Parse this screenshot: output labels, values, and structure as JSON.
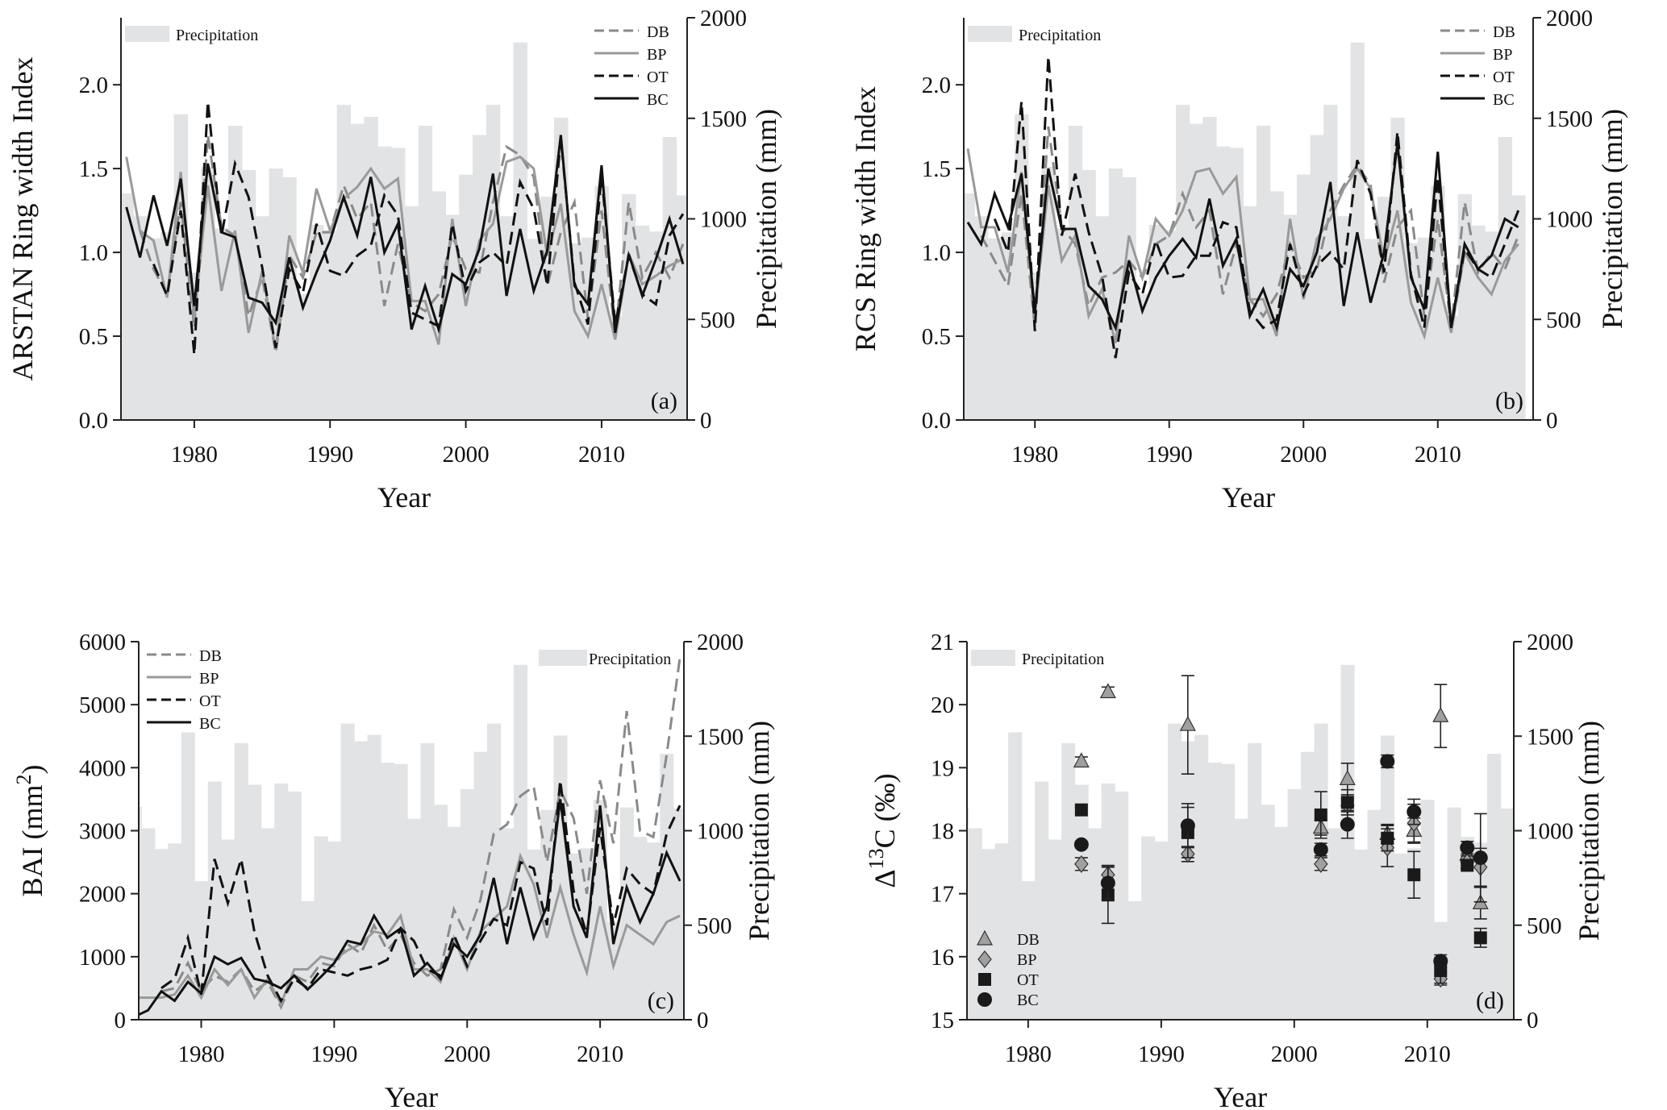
{
  "colors": {
    "precip": "#e2e3e5",
    "DB": "#8a8a8a",
    "BP": "#9a9a9a",
    "OT": "#111111",
    "BC": "#111111",
    "marker_gray": "#a0a0a0",
    "marker_dark": "#1a1a1a"
  },
  "chart_data": [
    {
      "id": "a",
      "type": "line",
      "panel_label": "(a)",
      "xlabel": "Year",
      "ylabel": "ARSTAN Ring width Index",
      "y2label": "Precipitation (mm)",
      "xticks": [
        1980,
        1990,
        2000,
        2010
      ],
      "yticks": [
        "0.0",
        "0.5",
        "1.0",
        "1.5",
        "2.0"
      ],
      "y2ticks": [
        "0",
        "500",
        "1000",
        "1500",
        "2000"
      ],
      "ylim": [
        0,
        2.4
      ],
      "y2lim": [
        0,
        2000
      ],
      "xlim": [
        1974.6,
        2016.3
      ],
      "legend_precip": "Precipitation",
      "legend_placement": "top-right",
      "series": [
        {
          "name": "DB",
          "style": "gray-dashed",
          "start": 1976,
          "values": [
            1.13,
            0.9,
            0.75,
            1.3,
            0.55,
            1.7,
            1.15,
            1.1,
            0.62,
            0.85,
            0.4,
            0.98,
            0.85,
            1.12,
            1.12,
            1.4,
            1.2,
            1.3,
            0.68,
            1.05,
            0.7,
            0.65,
            0.75,
            1.1,
            0.9,
            0.88,
            1.3,
            1.63,
            1.58,
            1.45,
            0.8,
            1.12,
            1.3,
            0.6,
            1.25,
            0.5,
            1.3,
            0.85,
            1.0,
            0.85,
            1.05
          ]
        },
        {
          "name": "BP",
          "style": "gray-solid",
          "start": 1975,
          "values": [
            1.57,
            1.13,
            1.07,
            0.73,
            1.48,
            0.6,
            1.4,
            0.77,
            1.13,
            0.52,
            0.89,
            0.42,
            1.1,
            0.88,
            1.38,
            1.13,
            1.32,
            1.39,
            1.5,
            1.38,
            1.44,
            0.71,
            0.71,
            0.45,
            1.2,
            0.68,
            1.07,
            1.17,
            1.54,
            1.57,
            1.5,
            0.98,
            1.29,
            0.65,
            0.5,
            0.81,
            0.48,
            0.99,
            0.81,
            0.86,
            0.92,
            0.96
          ]
        },
        {
          "name": "OT",
          "style": "black-dashed",
          "start": 1977,
          "values": [
            0.93,
            0.74,
            1.25,
            0.39,
            1.9,
            1.1,
            1.53,
            1.33,
            0.91,
            0.43,
            0.9,
            0.76,
            1.17,
            0.89,
            0.86,
            0.98,
            1.04,
            1.34,
            1.22,
            0.64,
            0.6,
            0.56,
            1.17,
            0.77,
            0.94,
            1.0,
            0.92,
            1.42,
            1.26,
            0.8,
            1.68,
            0.82,
            0.57,
            1.46,
            0.57,
            0.98,
            0.75,
            0.69,
            1.1,
            1.23
          ]
        },
        {
          "name": "BC",
          "style": "black-solid",
          "start": 1975,
          "values": [
            1.27,
            0.97,
            1.34,
            1.04,
            1.44,
            0.68,
            1.53,
            1.12,
            1.09,
            0.73,
            0.7,
            0.58,
            0.97,
            0.67,
            0.88,
            1.07,
            1.33,
            1.1,
            1.45,
            1.0,
            1.17,
            0.54,
            0.8,
            0.54,
            0.87,
            0.81,
            1.02,
            1.47,
            0.74,
            1.14,
            0.77,
            1.01,
            1.7,
            0.8,
            0.69,
            1.52,
            0.52,
            0.99,
            0.74,
            0.96,
            1.2,
            0.93
          ]
        }
      ]
    },
    {
      "id": "b",
      "type": "line",
      "panel_label": "(b)",
      "xlabel": "Year",
      "ylabel": "RCS Ring width Index",
      "y2label": "Precipitation (mm)",
      "xticks": [
        1980,
        1990,
        2000,
        2010
      ],
      "yticks": [
        "0.0",
        "0.5",
        "1.0",
        "1.5",
        "2.0"
      ],
      "y2ticks": [
        "0",
        "500",
        "1000",
        "1500",
        "2000"
      ],
      "ylim": [
        0,
        2.4
      ],
      "y2lim": [
        0,
        2000
      ],
      "xlim": [
        1974.7,
        2017.1
      ],
      "legend_precip": "Precipitation",
      "legend_placement": "top-right",
      "series": [
        {
          "name": "DB",
          "style": "gray-dashed",
          "start": 1976,
          "values": [
            1.1,
            0.95,
            0.8,
            1.35,
            0.55,
            1.75,
            1.15,
            1.05,
            0.68,
            0.85,
            0.88,
            0.95,
            0.85,
            1.05,
            1.1,
            1.35,
            1.15,
            1.25,
            0.75,
            1.05,
            0.72,
            0.62,
            0.75,
            1.05,
            0.85,
            0.9,
            1.25,
            1.4,
            1.52,
            1.4,
            0.82,
            1.15,
            1.25,
            0.62,
            1.2,
            0.55,
            1.3,
            0.88,
            1.0,
            0.9,
            1.1
          ]
        },
        {
          "name": "BP",
          "style": "gray-solid",
          "start": 1975,
          "values": [
            1.62,
            1.15,
            1.15,
            0.88,
            1.48,
            0.62,
            1.4,
            0.95,
            1.1,
            0.62,
            0.78,
            0.46,
            1.1,
            0.85,
            1.2,
            1.1,
            1.25,
            1.48,
            1.5,
            1.35,
            1.45,
            0.72,
            0.72,
            0.5,
            1.2,
            0.72,
            1.08,
            1.2,
            1.38,
            1.5,
            1.38,
            0.95,
            1.25,
            0.7,
            0.5,
            0.85,
            0.52,
            1.0,
            0.85,
            0.75,
            0.95,
            1.05
          ]
        },
        {
          "name": "OT",
          "style": "black-dashed",
          "start": 1977,
          "values": [
            1.2,
            1.0,
            1.9,
            0.53,
            2.17,
            1.1,
            1.47,
            1.12,
            0.86,
            0.37,
            0.88,
            0.75,
            1.07,
            0.85,
            0.86,
            0.98,
            0.98,
            1.18,
            1.15,
            0.65,
            0.55,
            0.6,
            1.05,
            0.75,
            0.92,
            1.0,
            0.9,
            1.55,
            1.35,
            0.88,
            1.72,
            0.87,
            0.55,
            1.45,
            0.55,
            1.02,
            0.9,
            0.85,
            1.05,
            1.25
          ]
        },
        {
          "name": "BC",
          "style": "black-solid",
          "start": 1975,
          "values": [
            1.18,
            1.05,
            1.35,
            1.15,
            1.47,
            0.65,
            1.5,
            1.14,
            1.14,
            0.8,
            0.72,
            0.55,
            0.95,
            0.65,
            0.85,
            0.98,
            1.08,
            0.97,
            1.32,
            0.92,
            1.08,
            0.62,
            0.78,
            0.55,
            0.9,
            0.8,
            1.0,
            1.42,
            0.68,
            1.12,
            0.7,
            1.0,
            1.65,
            0.85,
            0.66,
            1.6,
            0.55,
            1.05,
            0.9,
            0.98,
            1.2,
            1.15
          ]
        }
      ]
    },
    {
      "id": "c",
      "type": "line",
      "panel_label": "(c)",
      "xlabel": "Year",
      "ylabel": "BAI (mm",
      "ylabel_sup": "2",
      "ylabel_end": ")",
      "y2label": "Precipitation (mm)",
      "xticks": [
        1980,
        1990,
        2000,
        2010
      ],
      "yticks": [
        "0",
        "1000",
        "2000",
        "3000",
        "4000",
        "5000",
        "6000"
      ],
      "y2ticks": [
        "0",
        "500",
        "1000",
        "1500",
        "2000"
      ],
      "ylim": [
        0,
        6000
      ],
      "y2lim": [
        0,
        2000
      ],
      "xlim": [
        1975.3,
        2016.3
      ],
      "legend_precip": "Precipitation",
      "legend_placement": "top-left",
      "series": [
        {
          "name": "DB",
          "style": "gray-dashed",
          "start": 1977,
          "values": [
            450,
            500,
            900,
            450,
            700,
            600,
            800,
            450,
            600,
            200,
            700,
            600,
            900,
            850,
            1200,
            1050,
            1500,
            1100,
            1350,
            900,
            700,
            800,
            1750,
            1300,
            1900,
            2950,
            3100,
            3550,
            3700,
            2500,
            3650,
            3200,
            2000,
            3800,
            2800,
            4900,
            3000,
            2900,
            4200,
            5750
          ]
        },
        {
          "name": "BP",
          "style": "gray-solid",
          "start": 1975,
          "values": [
            350,
            350,
            350,
            400,
            700,
            350,
            800,
            550,
            800,
            350,
            650,
            250,
            800,
            800,
            1000,
            950,
            1100,
            1200,
            1400,
            1350,
            1650,
            800,
            800,
            600,
            1300,
            800,
            1400,
            1600,
            1800,
            2600,
            2150,
            1300,
            2100,
            1350,
            750,
            1800,
            850,
            1500,
            1350,
            1200,
            1550,
            1650
          ]
        },
        {
          "name": "OT",
          "style": "black-dashed",
          "start": 1977,
          "values": [
            500,
            650,
            1300,
            400,
            2550,
            1850,
            2550,
            1400,
            700,
            300,
            650,
            500,
            800,
            750,
            700,
            800,
            850,
            950,
            1450,
            1250,
            800,
            700,
            1350,
            850,
            1250,
            1600,
            1500,
            2500,
            2400,
            1500,
            3800,
            2050,
            1350,
            3050,
            1500,
            2400,
            2150,
            2000,
            2950,
            3400
          ]
        },
        {
          "name": "BC",
          "style": "black-solid",
          "start": 1975,
          "values": [
            50,
            150,
            450,
            300,
            600,
            420,
            1000,
            880,
            980,
            650,
            600,
            500,
            700,
            480,
            680,
            900,
            1250,
            1200,
            1650,
            1300,
            1450,
            700,
            900,
            650,
            1200,
            1000,
            1350,
            2250,
            1200,
            2100,
            1300,
            1800,
            3500,
            1800,
            1300,
            3400,
            1200,
            2100,
            1550,
            2000,
            2650,
            2200
          ]
        }
      ]
    },
    {
      "id": "d",
      "type": "scatter",
      "panel_label": "(d)",
      "xlabel": "Year",
      "ylabel": "Δ",
      "ylabel_sup": "13",
      "ylabel_end": "C (‰)",
      "y2label": "Precipitation (mm)",
      "xticks": [
        1980,
        1990,
        2000,
        2010
      ],
      "yticks": [
        "15",
        "16",
        "17",
        "18",
        "19",
        "20",
        "21"
      ],
      "y2ticks": [
        "0",
        "500",
        "1000",
        "1500",
        "2000"
      ],
      "ylim": [
        15,
        21
      ],
      "y2lim": [
        0,
        2000
      ],
      "xlim": [
        1975.4,
        2016.5
      ],
      "legend_precip": "Precipitation",
      "legend_placement": "bottom-left",
      "series": [
        {
          "name": "DB",
          "marker": "triangle",
          "years": [
            1984,
            1986,
            1992,
            2002,
            2004,
            2007,
            2009,
            2011,
            2013,
            2014
          ],
          "values": [
            19.1,
            20.2,
            19.68,
            18.05,
            18.82,
            17.95,
            18.0,
            19.82,
            17.62,
            16.85
          ],
          "errors": [
            0.07,
            0.08,
            0.78,
            0.12,
            0.25,
            0.15,
            0.2,
            0.5,
            0.1,
            0.25
          ]
        },
        {
          "name": "BP",
          "marker": "diamond",
          "years": [
            1984,
            1986,
            1992,
            2002,
            2004,
            2007,
            2009,
            2011,
            2013,
            2014
          ],
          "values": [
            17.47,
            17.3,
            17.63,
            17.47,
            18.4,
            17.73,
            18.12,
            15.65,
            17.5,
            17.42
          ],
          "errors": [
            0.1,
            0.15,
            0.12,
            0.1,
            0.1,
            0.3,
            0.3,
            0.1,
            0.1,
            0.3
          ]
        },
        {
          "name": "OT",
          "marker": "square",
          "years": [
            1984,
            1986,
            1992,
            2002,
            2004,
            2007,
            2009,
            2011,
            2013,
            2014
          ],
          "values": [
            18.33,
            16.98,
            17.97,
            18.25,
            18.45,
            17.88,
            17.3,
            15.78,
            17.45,
            16.3
          ],
          "errors": [
            0.05,
            0.45,
            0.4,
            0.37,
            0.2,
            0.2,
            0.37,
            0.2,
            0.05,
            0.15
          ]
        },
        {
          "name": "BC",
          "marker": "circle",
          "years": [
            1984,
            1986,
            1992,
            2002,
            2004,
            2007,
            2009,
            2011,
            2013,
            2014
          ],
          "values": [
            17.78,
            17.17,
            18.08,
            17.7,
            18.1,
            19.1,
            18.3,
            15.93,
            17.73,
            17.57
          ],
          "errors": [
            0.05,
            0.25,
            0.35,
            0.1,
            0.22,
            0.1,
            0.2,
            0.1,
            0.1,
            0.7
          ]
        }
      ]
    }
  ],
  "precipitation": {
    "start": 1975,
    "values_mm": [
      1127,
      1013,
      903,
      933,
      1520,
      733,
      1260,
      953,
      1463,
      1243,
      1013,
      1250,
      1207,
      627,
      970,
      943,
      1567,
      1473,
      1507,
      1360,
      1353,
      1063,
      1463,
      1137,
      1020,
      1220,
      1417,
      1567,
      1013,
      1877,
      900,
      1110,
      1503,
      880,
      907,
      1163,
      517,
      1123,
      967,
      937,
      1407,
      1117
    ]
  }
}
